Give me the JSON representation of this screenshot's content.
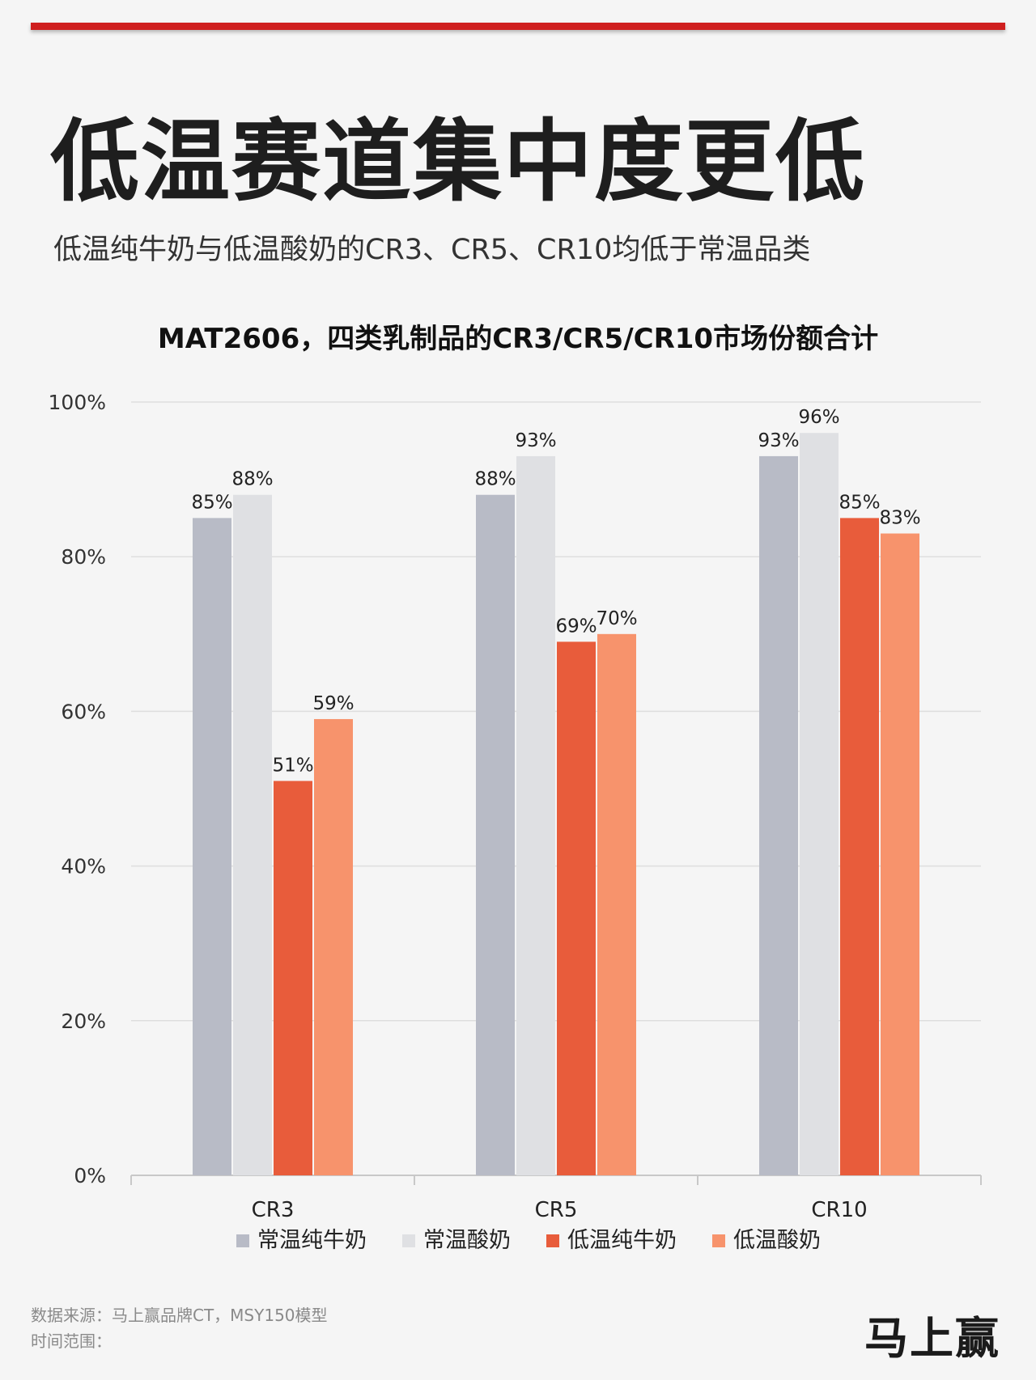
{
  "header": {
    "title": "低温赛道集中度更低",
    "subtitle": "低温纯牛奶与低温酸奶的CR3、CR5、CR10均低于常温品类"
  },
  "chart_data": {
    "type": "bar",
    "title": "MAT2606，四类乳制品的CR3/CR5/CR10市场份额合计",
    "categories": [
      "CR3",
      "CR5",
      "CR10"
    ],
    "ylim": [
      0,
      100
    ],
    "y_ticks": [
      "0%",
      "20%",
      "40%",
      "60%",
      "80%",
      "100%"
    ],
    "grid": true,
    "legend_position": "bottom",
    "series": [
      {
        "name": "常温纯牛奶",
        "values": [
          85,
          88,
          93
        ],
        "labels": [
          "85%",
          "88%",
          "93%"
        ],
        "color": "#b8bbc6"
      },
      {
        "name": "常温酸奶",
        "values": [
          88,
          93,
          96
        ],
        "labels": [
          "88%",
          "93%",
          "96%"
        ],
        "color": "#dfe0e3"
      },
      {
        "name": "低温纯牛奶",
        "values": [
          51,
          69,
          85
        ],
        "labels": [
          "51%",
          "69%",
          "85%"
        ],
        "color": "#e85c3b"
      },
      {
        "name": "低温酸奶",
        "values": [
          59,
          70,
          83
        ],
        "labels": [
          "59%",
          "70%",
          "83%"
        ],
        "color": "#f7936c"
      }
    ]
  },
  "footer": {
    "source": "数据来源：马上赢品牌CT，MSY150模型",
    "time_range": "时间范围：",
    "brand": "马上赢"
  }
}
